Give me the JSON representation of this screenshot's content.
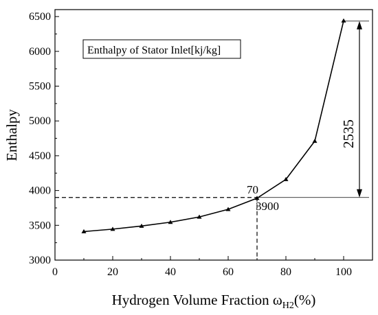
{
  "chart_data": {
    "type": "line",
    "xlabel": "Hydrogen Volume Fraction ω",
    "xlabel_sub": "H2",
    "xlabel_suffix": "(%)",
    "ylabel": "Enthalpy",
    "xlim": [
      0,
      110
    ],
    "ylim": [
      3000,
      6600
    ],
    "xticks": [
      0,
      20,
      40,
      60,
      80,
      100
    ],
    "yticks": [
      3000,
      3500,
      4000,
      4500,
      5000,
      5500,
      6000,
      6500
    ],
    "legend": "Enthalpy of Stator Inlet[kj/kg]",
    "legend_placement": "top-left",
    "grid": false,
    "series": [
      {
        "name": "Enthalpy of Stator Inlet[kj/kg]",
        "x": [
          10,
          20,
          30,
          40,
          50,
          60,
          70,
          80,
          90,
          100
        ],
        "y": [
          3410,
          3445,
          3490,
          3545,
          3620,
          3730,
          3890,
          4160,
          4710,
          6440
        ]
      }
    ],
    "annotations": {
      "point_x_label": "70",
      "point_y_label": "3900",
      "reference_x": 70,
      "reference_y": 3900,
      "difference_label": "2535",
      "difference_from": 3900,
      "difference_to": 6435
    }
  }
}
